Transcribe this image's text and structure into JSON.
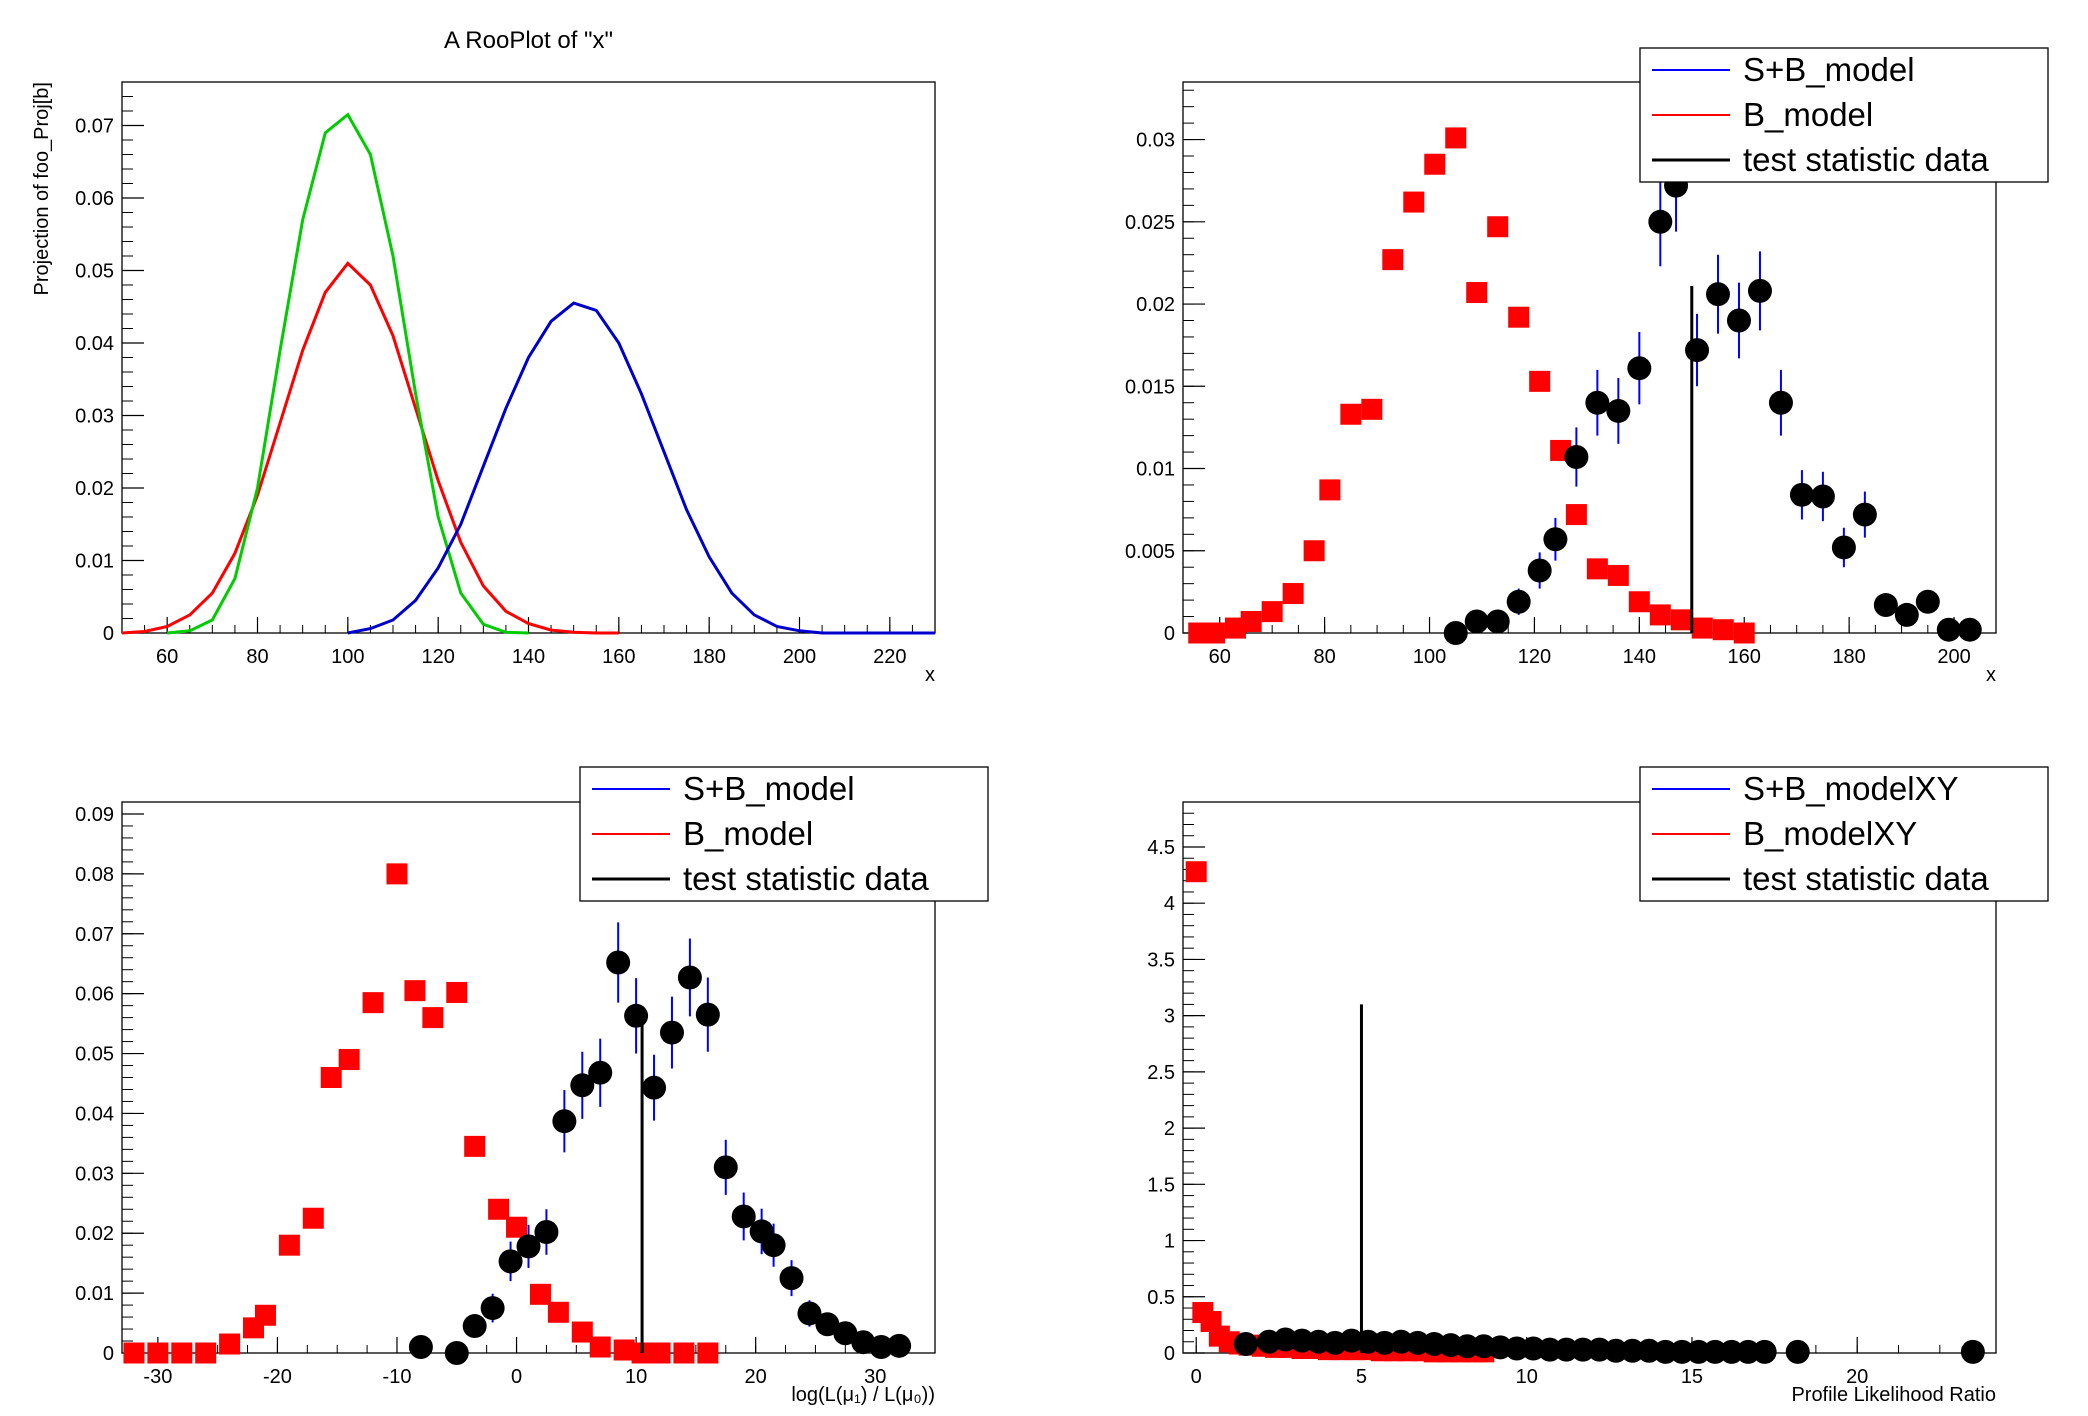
{
  "chart_data": [
    {
      "type": "line",
      "title": "A RooPlot of \"x\"",
      "xlabel": "x",
      "ylabel": "Projection of foo_Proj[b]",
      "xlim": [
        50,
        230
      ],
      "ylim": [
        0,
        0.076
      ],
      "xticks": [
        60,
        80,
        100,
        120,
        140,
        160,
        180,
        200,
        220
      ],
      "yticks": [
        0,
        0.01,
        0.02,
        0.03,
        0.04,
        0.05,
        0.06,
        0.07
      ],
      "legend": null,
      "series": [
        {
          "color": "#ff0000",
          "x": [
            50,
            55,
            60,
            65,
            70,
            75,
            80,
            85,
            90,
            95,
            100,
            105,
            110,
            115,
            120,
            125,
            130,
            135,
            140,
            145,
            150,
            155,
            160
          ],
          "y": [
            0,
            0.0002,
            0.0009,
            0.0025,
            0.0055,
            0.011,
            0.019,
            0.029,
            0.039,
            0.047,
            0.051,
            0.048,
            0.041,
            0.031,
            0.021,
            0.0125,
            0.0065,
            0.003,
            0.0013,
            0.0004,
            0.0001,
            0,
            0
          ]
        },
        {
          "color": "#00cc00",
          "x": [
            60,
            65,
            70,
            75,
            80,
            85,
            90,
            95,
            100,
            105,
            110,
            115,
            120,
            125,
            130,
            135,
            140
          ],
          "y": [
            0,
            0.0003,
            0.0018,
            0.0075,
            0.02,
            0.039,
            0.057,
            0.069,
            0.0715,
            0.066,
            0.052,
            0.033,
            0.016,
            0.0055,
            0.0012,
            0.0001,
            0
          ]
        },
        {
          "color": "#0000cc",
          "x": [
            100,
            105,
            110,
            115,
            120,
            125,
            130,
            135,
            140,
            145,
            150,
            155,
            160,
            165,
            170,
            175,
            180,
            185,
            190,
            195,
            200,
            205,
            210,
            230
          ],
          "y": [
            0,
            0.0006,
            0.0018,
            0.0045,
            0.009,
            0.015,
            0.023,
            0.031,
            0.038,
            0.043,
            0.0455,
            0.0445,
            0.04,
            0.033,
            0.025,
            0.017,
            0.0105,
            0.0055,
            0.0025,
            0.0009,
            0.0003,
            0,
            0,
            0
          ]
        }
      ]
    },
    {
      "type": "scatter",
      "xlabel": "x",
      "xlim": [
        53,
        208
      ],
      "ylim": [
        0,
        0.0335
      ],
      "xticks": [
        60,
        80,
        100,
        120,
        140,
        160,
        180,
        200
      ],
      "yticks": [
        0,
        0.005,
        0.01,
        0.015,
        0.02,
        0.025,
        0.03
      ],
      "legend": [
        {
          "label": "S+B_model",
          "color": "#0000ff"
        },
        {
          "label": "B_model",
          "color": "#ff0000"
        },
        {
          "label": "test statistic data",
          "color": "#000000"
        }
      ],
      "data_line_x": 150,
      "data_line_top": 0.0211,
      "series": [
        {
          "name": "B_model",
          "marker": "square",
          "color": "#ff0000",
          "x": [
            56,
            59,
            63,
            66,
            70,
            74,
            78,
            81,
            85,
            89,
            93,
            97,
            101,
            105,
            109,
            113,
            117,
            121,
            125,
            128,
            132,
            136,
            140,
            144,
            148,
            152,
            156,
            160
          ],
          "y": [
            0,
            0,
            0.0003,
            0.0007,
            0.0013,
            0.0024,
            0.005,
            0.0087,
            0.0133,
            0.0136,
            0.0227,
            0.0262,
            0.0285,
            0.0301,
            0.0207,
            0.0247,
            0.0192,
            0.0153,
            0.0111,
            0.0072,
            0.0039,
            0.0035,
            0.0019,
            0.0011,
            0.0008,
            0.0003,
            0.0002,
            0
          ]
        },
        {
          "name": "S+B_model",
          "marker": "circle",
          "color": "#000000",
          "x": [
            105,
            109,
            113,
            117,
            121,
            124,
            128,
            132,
            136,
            140,
            144,
            147,
            151,
            155,
            159,
            163,
            167,
            171,
            175,
            179,
            183,
            187,
            191,
            195,
            199,
            203
          ],
          "y": [
            0,
            0.0007,
            0.0007,
            0.0019,
            0.0038,
            0.0057,
            0.0107,
            0.014,
            0.0135,
            0.0161,
            0.025,
            0.0272,
            0.0172,
            0.0206,
            0.019,
            0.0208,
            0.014,
            0.0084,
            0.0083,
            0.0052,
            0.0072,
            0.0017,
            0.0011,
            0.0019,
            0.0002,
            0.0002
          ],
          "err": [
            0,
            0.0006,
            0.0006,
            0.0008,
            0.0011,
            0.0013,
            0.0018,
            0.002,
            0.002,
            0.0022,
            0.0027,
            0.0028,
            0.0022,
            0.0024,
            0.0023,
            0.0024,
            0.002,
            0.0015,
            0.0015,
            0.0012,
            0.0014,
            0.0007,
            0.0006,
            0.0007,
            0.0002,
            0.0002
          ]
        }
      ]
    },
    {
      "type": "scatter",
      "xlabel": "log(L(μ₁) / L(μ₀))",
      "xlim": [
        -33,
        35
      ],
      "ylim": [
        0,
        0.092
      ],
      "xticks": [
        -30,
        -20,
        -10,
        0,
        10,
        20,
        30
      ],
      "yticks": [
        0,
        0.01,
        0.02,
        0.03,
        0.04,
        0.05,
        0.06,
        0.07,
        0.08,
        0.09
      ],
      "legend": [
        {
          "label": "S+B_model",
          "color": "#0000ff"
        },
        {
          "label": "B_model",
          "color": "#ff0000"
        },
        {
          "label": "test statistic data",
          "color": "#000000"
        }
      ],
      "data_line_x": 10.5,
      "data_line_top": 0.056,
      "series": [
        {
          "name": "B_model",
          "marker": "square",
          "color": "#ff0000",
          "x": [
            -32,
            -30,
            -28,
            -26,
            -24,
            -22,
            -21,
            -19,
            -17,
            -15.5,
            -14,
            -12,
            -10,
            -8.5,
            -7,
            -5,
            -3.5,
            -1.5,
            0,
            2,
            3.5,
            5.5,
            7,
            9,
            10.5,
            12,
            14,
            16
          ],
          "y": [
            0,
            0,
            0,
            0,
            0.0015,
            0.0042,
            0.0063,
            0.018,
            0.0225,
            0.046,
            0.049,
            0.0585,
            0.08,
            0.0605,
            0.056,
            0.0602,
            0.0345,
            0.024,
            0.021,
            0.0098,
            0.0068,
            0.0035,
            0.001,
            0.0005,
            0,
            0,
            0,
            0
          ]
        },
        {
          "name": "S+B_model",
          "marker": "circle",
          "color": "#000000",
          "x": [
            -8,
            -5,
            -3.5,
            -2,
            -0.5,
            1,
            2.5,
            4,
            5.5,
            7,
            8.5,
            10,
            11.5,
            13,
            14.5,
            16,
            17.5,
            19,
            20.5,
            21.5,
            23,
            24.5,
            26,
            27.5,
            29,
            30.5,
            32
          ],
          "y": [
            0.001,
            0,
            0.0045,
            0.0075,
            0.0153,
            0.0178,
            0.0202,
            0.0387,
            0.0447,
            0.0468,
            0.0652,
            0.0563,
            0.0443,
            0.0535,
            0.0627,
            0.0565,
            0.031,
            0.0228,
            0.0203,
            0.018,
            0.0125,
            0.0066,
            0.0048,
            0.0033,
            0.0018,
            0.001,
            0.0012
          ],
          "err": [
            0.0008,
            0,
            0.0018,
            0.0024,
            0.0033,
            0.0036,
            0.0038,
            0.0052,
            0.0056,
            0.0057,
            0.0067,
            0.0063,
            0.0055,
            0.006,
            0.0065,
            0.0062,
            0.0046,
            0.004,
            0.0038,
            0.0036,
            0.003,
            0.0022,
            0.0018,
            0.0015,
            0.0011,
            0.0008,
            0.0009
          ]
        }
      ]
    },
    {
      "type": "scatter",
      "xlabel": "Profile Likelihood Ratio",
      "xlim": [
        -0.4,
        24.2
      ],
      "ylim": [
        0,
        4.9
      ],
      "xticks": [
        0,
        5,
        10,
        15,
        20
      ],
      "yticks": [
        0,
        0.5,
        1,
        1.5,
        2,
        2.5,
        3,
        3.5,
        4,
        4.5
      ],
      "legend": [
        {
          "label": "S+B_modelXY",
          "color": "#0000ff"
        },
        {
          "label": "B_modelXY",
          "color": "#ff0000"
        },
        {
          "label": "test statistic data",
          "color": "#000000"
        }
      ],
      "data_line_x": 5,
      "data_line_top": 3.1,
      "series": [
        {
          "name": "B_modelXY",
          "marker": "square",
          "color": "#ff0000",
          "x": [
            0,
            0.2,
            0.45,
            0.7,
            1,
            1.3,
            1.6,
            2,
            2.4,
            2.8,
            3.2,
            3.6,
            4,
            4.4,
            4.8,
            5.2,
            5.6,
            6,
            6.4,
            6.8,
            7.2,
            7.6,
            8,
            8.4,
            8.7
          ],
          "y": [
            4.28,
            0.36,
            0.28,
            0.15,
            0.1,
            0.08,
            0.07,
            0.06,
            0.05,
            0.05,
            0.04,
            0.04,
            0.03,
            0.03,
            0.03,
            0.03,
            0.02,
            0.02,
            0.02,
            0.02,
            0.01,
            0.01,
            0.01,
            0.01,
            0.01
          ]
        },
        {
          "name": "S+B_modelXY",
          "marker": "circle",
          "color": "#000000",
          "x": [
            1.5,
            2.2,
            2.7,
            3.2,
            3.7,
            4.2,
            4.7,
            5.2,
            5.7,
            6.2,
            6.7,
            7.2,
            7.7,
            8.2,
            8.7,
            9.2,
            9.7,
            10.2,
            10.7,
            11.2,
            11.7,
            12.2,
            12.7,
            13.2,
            13.7,
            14.2,
            14.7,
            15.2,
            15.7,
            16.2,
            16.7,
            17.2,
            18.2,
            23.5
          ],
          "y": [
            0.08,
            0.1,
            0.12,
            0.11,
            0.1,
            0.09,
            0.11,
            0.1,
            0.09,
            0.1,
            0.09,
            0.08,
            0.07,
            0.06,
            0.06,
            0.05,
            0.04,
            0.04,
            0.03,
            0.03,
            0.03,
            0.03,
            0.02,
            0.02,
            0.02,
            0.01,
            0.01,
            0.01,
            0.01,
            0.01,
            0.01,
            0.01,
            0.01,
            0.01
          ],
          "err": [
            0.03,
            0.03,
            0.04,
            0.04,
            0.03,
            0.03,
            0.04,
            0.03,
            0.03,
            0.03,
            0.03,
            0.03,
            0.03,
            0.02,
            0.02,
            0.02,
            0.02,
            0.02,
            0.02,
            0.02,
            0.02,
            0.02,
            0.01,
            0.01,
            0.01,
            0.01,
            0.01,
            0.01,
            0.01,
            0.01,
            0.01,
            0.01,
            0.01,
            0.01
          ]
        }
      ]
    }
  ]
}
